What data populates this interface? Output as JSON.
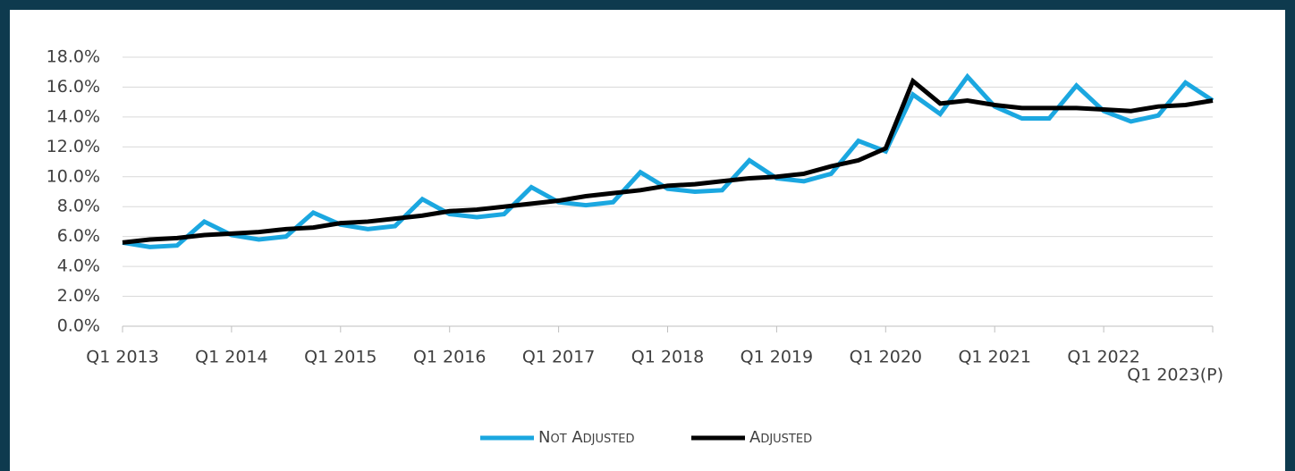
{
  "chart_data": {
    "type": "line",
    "categories": [
      "Q1 2013",
      null,
      null,
      null,
      "Q1 2014",
      null,
      null,
      null,
      "Q1 2015",
      null,
      null,
      null,
      "Q1 2016",
      null,
      null,
      null,
      "Q1 2017",
      null,
      null,
      null,
      "Q1 2018",
      null,
      null,
      null,
      "Q1 2019",
      null,
      null,
      null,
      "Q1 2020",
      null,
      null,
      null,
      "Q1 2021",
      null,
      null,
      null,
      "Q1 2022",
      null,
      null,
      null,
      "Q1 2023(P)"
    ],
    "series": [
      {
        "name": "Not Adjusted",
        "color": "#1ba7e0",
        "values": [
          5.6,
          5.3,
          5.4,
          7.0,
          6.1,
          5.8,
          6.0,
          7.6,
          6.8,
          6.5,
          6.7,
          8.5,
          7.5,
          7.3,
          7.5,
          9.3,
          8.3,
          8.1,
          8.3,
          10.3,
          9.2,
          9.0,
          9.1,
          11.1,
          9.9,
          9.7,
          10.2,
          12.4,
          11.7,
          15.5,
          14.2,
          16.7,
          14.7,
          13.9,
          13.9,
          16.1,
          14.4,
          13.7,
          14.1,
          16.3,
          15.1
        ]
      },
      {
        "name": "Adjusted",
        "color": "#000000",
        "values": [
          5.6,
          5.8,
          5.9,
          6.1,
          6.2,
          6.3,
          6.5,
          6.6,
          6.9,
          7.0,
          7.2,
          7.4,
          7.7,
          7.8,
          8.0,
          8.2,
          8.4,
          8.7,
          8.9,
          9.1,
          9.4,
          9.5,
          9.7,
          9.9,
          10.0,
          10.2,
          10.7,
          11.1,
          11.9,
          16.4,
          14.9,
          15.1,
          14.8,
          14.6,
          14.6,
          14.6,
          14.5,
          14.4,
          14.7,
          14.8,
          15.1
        ]
      }
    ],
    "ylim": [
      0,
      18
    ],
    "yticks": [
      {
        "value": 0,
        "label": "0.0%"
      },
      {
        "value": 2,
        "label": "2.0%"
      },
      {
        "value": 4,
        "label": "4.0%"
      },
      {
        "value": 6,
        "label": "6.0%"
      },
      {
        "value": 8,
        "label": "8.0%"
      },
      {
        "value": 10,
        "label": "10.0%"
      },
      {
        "value": 12,
        "label": "12.0%"
      },
      {
        "value": 14,
        "label": "14.0%"
      },
      {
        "value": 16,
        "label": "16.0%"
      },
      {
        "value": 18,
        "label": "18.0%"
      }
    ],
    "grid": true,
    "legend": "bottom"
  }
}
